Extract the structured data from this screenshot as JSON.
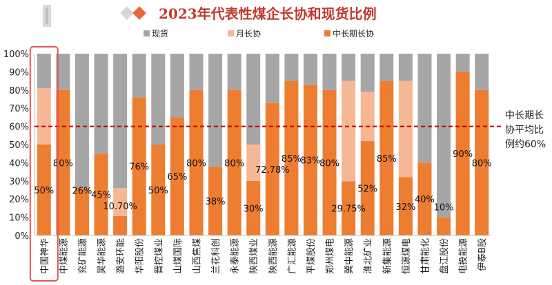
{
  "chart_data": {
    "type": "bar",
    "stacked": true,
    "title": "2023年代表性煤企长协和现货比例",
    "legend": [
      "现货",
      "月长协",
      "中长期长协"
    ],
    "colors": {
      "spot": "#a6a6a6",
      "monthly": "#f6b894",
      "long": "#ed7d31",
      "ref_line": "#c00000",
      "highlight": "#e8525a",
      "logo": "#e8673a"
    },
    "categories": [
      "中国神华",
      "中煤能源",
      "兖矿能源",
      "昊华能源",
      "潞安环能",
      "华阳股份",
      "晋控煤业",
      "山煤国际",
      "山西焦煤",
      "兰花科创",
      "永泰能源",
      "陕西煤业",
      "陕西能源",
      "广汇能源",
      "平煤股份",
      "郑州煤电",
      "冀中能源",
      "淮北矿业",
      "新集能源",
      "恒源煤电",
      "甘肃能化",
      "盘江股份",
      "电投能源",
      "伊泰B股"
    ],
    "series": [
      {
        "name": "中长期长协",
        "values": [
          50,
          80,
          26,
          45,
          10.7,
          76,
          50,
          65,
          80,
          38,
          80,
          30,
          72.78,
          85,
          83,
          80,
          29.75,
          52,
          85,
          32,
          40,
          10,
          90,
          80
        ]
      },
      {
        "name": "月长协",
        "values": [
          31,
          0,
          0,
          0,
          15.3,
          0,
          0,
          0,
          0,
          0,
          0,
          20,
          0,
          0,
          0,
          0,
          55.25,
          27,
          0,
          53,
          0,
          0,
          0,
          0
        ]
      },
      {
        "name": "现货",
        "values": [
          19,
          20,
          74,
          55,
          74,
          24,
          50,
          35,
          20,
          62,
          20,
          50,
          27.22,
          15,
          17,
          20,
          15,
          21,
          15,
          15,
          60,
          90,
          10,
          20
        ]
      }
    ],
    "data_labels": [
      "50%",
      "80%",
      "26%",
      "45%",
      "10.70%",
      "76%",
      "50%",
      "65%",
      "80%",
      "38%",
      "80%",
      "30%",
      "72.78%",
      "85%",
      "83%",
      "80%",
      "29.75%",
      "52%",
      "85%",
      "32%",
      "40%",
      "10%",
      "90%",
      "80%"
    ],
    "yticks": [
      "0%",
      "10%",
      "20%",
      "30%",
      "40%",
      "50%",
      "60%",
      "70%",
      "80%",
      "90%",
      "100%"
    ],
    "ylim": [
      0,
      100
    ],
    "reference_line": {
      "value": 60
    },
    "annotation": [
      "中长期长",
      "协平均比",
      "例约60%"
    ],
    "highlighted_category": "中国神华"
  }
}
